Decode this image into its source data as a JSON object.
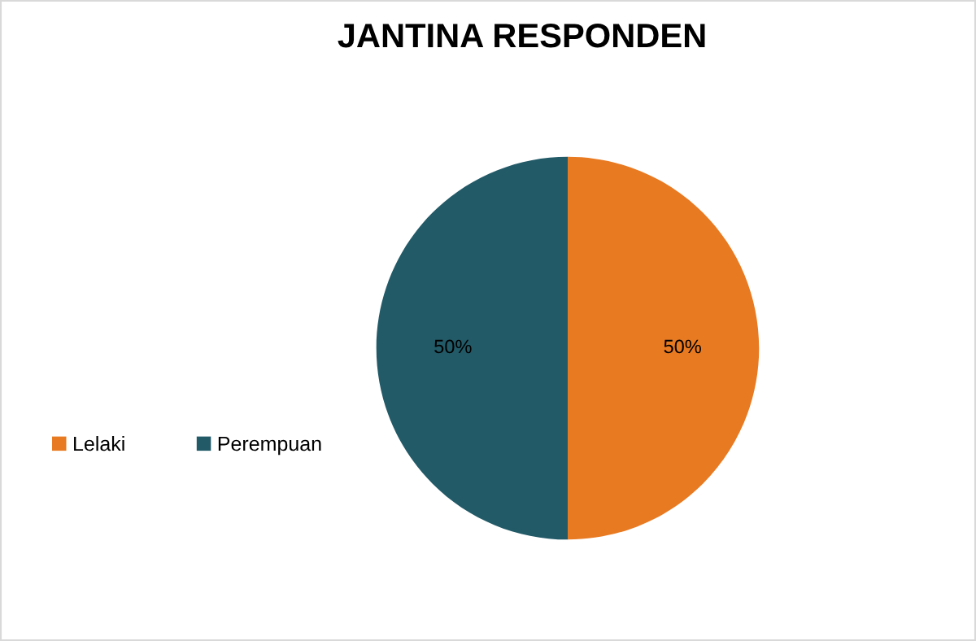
{
  "chart_data": {
    "type": "pie",
    "title": "JANTINA RESPONDEN",
    "categories": [
      "Lelaki",
      "Perempuan"
    ],
    "values": [
      50,
      50
    ],
    "colors": [
      "#e87a22",
      "#225a68"
    ],
    "value_labels": [
      "50%",
      "50%"
    ],
    "legend": "left"
  }
}
